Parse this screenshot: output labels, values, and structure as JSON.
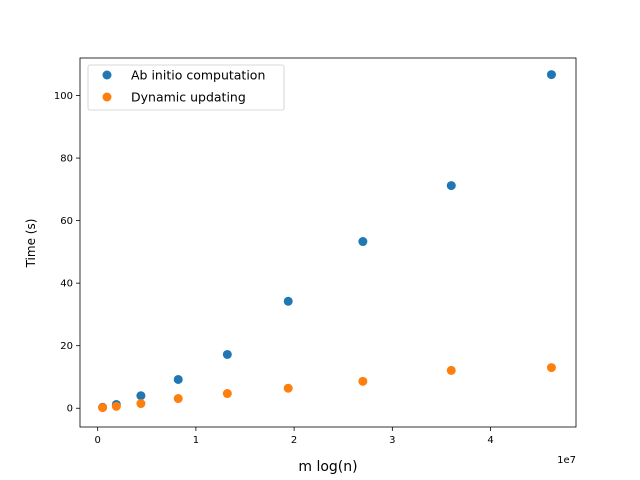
{
  "chart_data": {
    "type": "scatter",
    "title": "",
    "xlabel": "m log(n)",
    "ylabel": "Time (s)",
    "x_offset_label": "1e7",
    "xlim": [
      -0.18,
      4.87
    ],
    "ylim": [
      -6,
      112
    ],
    "xticks": [
      0,
      1,
      2,
      3,
      4
    ],
    "xtick_labels": [
      "0",
      "1",
      "2",
      "3",
      "4"
    ],
    "yticks": [
      0,
      20,
      40,
      60,
      80,
      100
    ],
    "ytick_labels": [
      "0",
      "20",
      "40",
      "60",
      "80",
      "100"
    ],
    "grid": false,
    "legend_position": "top-left",
    "series": [
      {
        "name": "Ab initio computation",
        "color": "#1f77b4",
        "x": [
          0.05,
          0.19,
          0.44,
          0.82,
          1.32,
          1.94,
          2.7,
          3.6,
          4.62
        ],
        "y": [
          0.3,
          1.2,
          4.0,
          9.2,
          17.2,
          34.2,
          53.3,
          71.2,
          106.7
        ]
      },
      {
        "name": "Dynamic updating",
        "color": "#ff7f0e",
        "x": [
          0.05,
          0.19,
          0.44,
          0.82,
          1.32,
          1.94,
          2.7,
          3.6,
          4.62
        ],
        "y": [
          0.2,
          0.6,
          1.5,
          3.1,
          4.7,
          6.4,
          8.6,
          12.1,
          13.0
        ]
      }
    ]
  }
}
